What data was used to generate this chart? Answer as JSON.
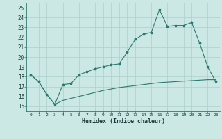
{
  "xlabel": "Humidex (Indice chaleur)",
  "background_color": "#cce8e5",
  "grid_color": "#aad0cc",
  "line_color": "#2a7a6e",
  "xlim": [
    -0.5,
    23.5
  ],
  "ylim": [
    14.5,
    25.5
  ],
  "x_ticks": [
    0,
    1,
    2,
    3,
    4,
    5,
    6,
    7,
    8,
    9,
    10,
    11,
    12,
    13,
    14,
    15,
    16,
    17,
    18,
    19,
    20,
    21,
    22,
    23
  ],
  "y_ticks": [
    15,
    16,
    17,
    18,
    19,
    20,
    21,
    22,
    23,
    24,
    25
  ],
  "line1_y": [
    18.2,
    17.5,
    16.2,
    15.2,
    17.2,
    17.3,
    18.2,
    18.5,
    18.8,
    19.0,
    19.2,
    19.3,
    20.5,
    21.8,
    22.3,
    22.5,
    24.8,
    23.1,
    23.2,
    23.2,
    23.5,
    21.4,
    19.0,
    17.5
  ],
  "line2_y": [
    18.2,
    17.5,
    16.2,
    15.2,
    15.6,
    15.8,
    16.0,
    16.2,
    16.4,
    16.6,
    16.75,
    16.9,
    17.0,
    17.1,
    17.2,
    17.3,
    17.4,
    17.45,
    17.5,
    17.55,
    17.6,
    17.65,
    17.7,
    17.7
  ]
}
